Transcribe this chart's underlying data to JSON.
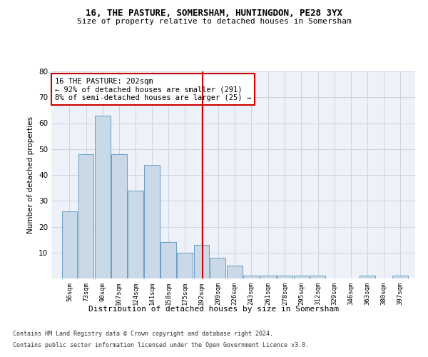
{
  "title1": "16, THE PASTURE, SOMERSHAM, HUNTINGDON, PE28 3YX",
  "title2": "Size of property relative to detached houses in Somersham",
  "xlabel": "Distribution of detached houses by size in Somersham",
  "ylabel": "Number of detached properties",
  "bar_labels": [
    "56sqm",
    "73sqm",
    "90sqm",
    "107sqm",
    "124sqm",
    "141sqm",
    "158sqm",
    "175sqm",
    "192sqm",
    "209sqm",
    "226sqm",
    "243sqm",
    "261sqm",
    "278sqm",
    "295sqm",
    "312sqm",
    "329sqm",
    "346sqm",
    "363sqm",
    "380sqm",
    "397sqm"
  ],
  "bin_edges": [
    56,
    73,
    90,
    107,
    124,
    141,
    158,
    175,
    192,
    209,
    226,
    243,
    261,
    278,
    295,
    312,
    329,
    346,
    363,
    380,
    397
  ],
  "counts": [
    26,
    48,
    63,
    48,
    34,
    44,
    14,
    10,
    13,
    8,
    5,
    1,
    1,
    1,
    1,
    1,
    0,
    0,
    1,
    0,
    1
  ],
  "bar_color": "#c9d9e8",
  "bar_edge_color": "#6b9dc2",
  "vline_x": 202,
  "vline_color": "#cc0000",
  "annotation_text": "16 THE PASTURE: 202sqm\n← 92% of detached houses are smaller (291)\n8% of semi-detached houses are larger (25) →",
  "ylim": [
    0,
    80
  ],
  "yticks": [
    0,
    10,
    20,
    30,
    40,
    50,
    60,
    70,
    80
  ],
  "grid_color": "#c8d4e4",
  "bg_color": "#eef2f8",
  "footer1": "Contains HM Land Registry data © Crown copyright and database right 2024.",
  "footer2": "Contains public sector information licensed under the Open Government Licence v3.0."
}
